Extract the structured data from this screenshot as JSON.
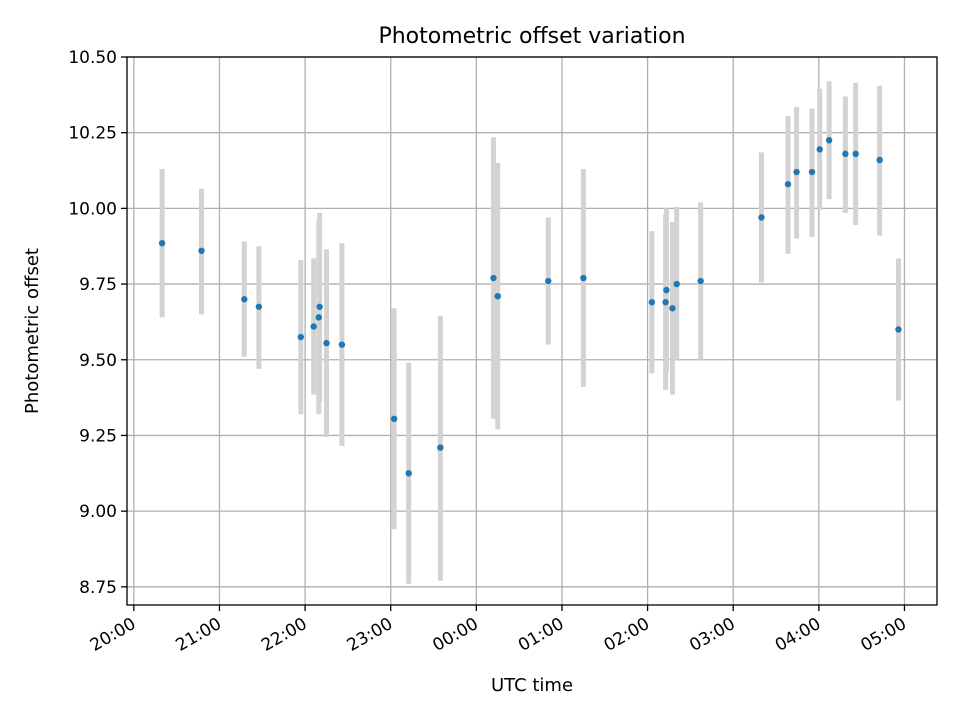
{
  "chart_data": {
    "type": "scatter",
    "title": "Photometric offset variation",
    "xlabel": "UTC time",
    "ylabel": "Photometric offset",
    "grid": true,
    "legend": "none",
    "xlim": [
      -0.08,
      9.38
    ],
    "ylim": [
      8.69,
      10.5
    ],
    "x_ticks": [
      {
        "value": 0,
        "label": "20:00"
      },
      {
        "value": 1,
        "label": "21:00"
      },
      {
        "value": 2,
        "label": "22:00"
      },
      {
        "value": 3,
        "label": "23:00"
      },
      {
        "value": 4,
        "label": "00:00"
      },
      {
        "value": 5,
        "label": "01:00"
      },
      {
        "value": 6,
        "label": "02:00"
      },
      {
        "value": 7,
        "label": "03:00"
      },
      {
        "value": 8,
        "label": "04:00"
      },
      {
        "value": 9,
        "label": "05:00"
      }
    ],
    "y_ticks": [
      {
        "value": 8.75,
        "label": "8.75"
      },
      {
        "value": 9.0,
        "label": "9.00"
      },
      {
        "value": 9.25,
        "label": "9.25"
      },
      {
        "value": 9.5,
        "label": "9.50"
      },
      {
        "value": 9.75,
        "label": "9.75"
      },
      {
        "value": 10.0,
        "label": "10.00"
      },
      {
        "value": 10.25,
        "label": "10.25"
      },
      {
        "value": 10.5,
        "label": "10.50"
      }
    ],
    "colors": {
      "point": "#1f77b4",
      "errorbar": "#d3d3d3",
      "grid": "#b0b0b0"
    },
    "points": [
      {
        "x": 0.33,
        "y": 9.885,
        "low": 9.64,
        "high": 10.13
      },
      {
        "x": 0.79,
        "y": 9.86,
        "low": 9.65,
        "high": 10.065
      },
      {
        "x": 1.29,
        "y": 9.7,
        "low": 9.51,
        "high": 9.89
      },
      {
        "x": 1.46,
        "y": 9.675,
        "low": 9.47,
        "high": 9.875
      },
      {
        "x": 1.95,
        "y": 9.575,
        "low": 9.32,
        "high": 9.83
      },
      {
        "x": 2.1,
        "y": 9.61,
        "low": 9.385,
        "high": 9.835
      },
      {
        "x": 2.16,
        "y": 9.64,
        "low": 9.32,
        "high": 9.96
      },
      {
        "x": 2.17,
        "y": 9.675,
        "low": 9.36,
        "high": 9.985
      },
      {
        "x": 2.25,
        "y": 9.555,
        "low": 9.245,
        "high": 9.865
      },
      {
        "x": 2.43,
        "y": 9.55,
        "low": 9.215,
        "high": 9.885
      },
      {
        "x": 3.04,
        "y": 9.305,
        "low": 8.94,
        "high": 9.67
      },
      {
        "x": 3.21,
        "y": 9.125,
        "low": 8.76,
        "high": 9.49
      },
      {
        "x": 3.58,
        "y": 9.21,
        "low": 8.77,
        "high": 9.645
      },
      {
        "x": 4.2,
        "y": 9.77,
        "low": 9.305,
        "high": 10.235
      },
      {
        "x": 4.25,
        "y": 9.71,
        "low": 9.27,
        "high": 10.15
      },
      {
        "x": 4.84,
        "y": 9.76,
        "low": 9.55,
        "high": 9.97
      },
      {
        "x": 5.25,
        "y": 9.77,
        "low": 9.41,
        "high": 10.13
      },
      {
        "x": 6.05,
        "y": 9.69,
        "low": 9.455,
        "high": 9.925
      },
      {
        "x": 6.21,
        "y": 9.69,
        "low": 9.4,
        "high": 9.98
      },
      {
        "x": 6.22,
        "y": 9.73,
        "low": 9.46,
        "high": 10.0
      },
      {
        "x": 6.29,
        "y": 9.67,
        "low": 9.385,
        "high": 9.955
      },
      {
        "x": 6.34,
        "y": 9.75,
        "low": 9.5,
        "high": 10.005
      },
      {
        "x": 6.62,
        "y": 9.76,
        "low": 9.5,
        "high": 10.02
      },
      {
        "x": 7.33,
        "y": 9.97,
        "low": 9.755,
        "high": 10.185
      },
      {
        "x": 7.64,
        "y": 10.08,
        "low": 9.85,
        "high": 10.305
      },
      {
        "x": 7.74,
        "y": 10.12,
        "low": 9.9,
        "high": 10.335
      },
      {
        "x": 7.92,
        "y": 10.12,
        "low": 9.905,
        "high": 10.33
      },
      {
        "x": 8.01,
        "y": 10.195,
        "low": 9.995,
        "high": 10.395
      },
      {
        "x": 8.12,
        "y": 10.225,
        "low": 10.03,
        "high": 10.42
      },
      {
        "x": 8.31,
        "y": 10.18,
        "low": 9.985,
        "high": 10.37
      },
      {
        "x": 8.43,
        "y": 10.18,
        "low": 9.945,
        "high": 10.415
      },
      {
        "x": 8.71,
        "y": 10.16,
        "low": 9.91,
        "high": 10.405
      },
      {
        "x": 8.93,
        "y": 9.6,
        "low": 9.365,
        "high": 9.835
      }
    ]
  }
}
